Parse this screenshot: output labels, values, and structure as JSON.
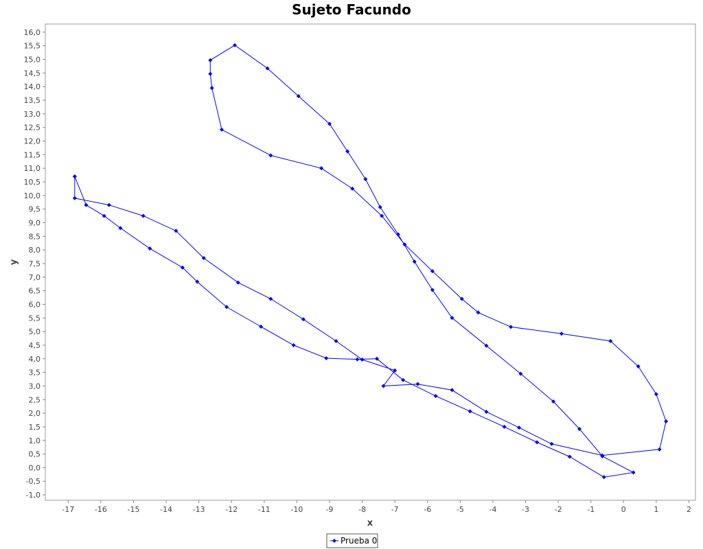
{
  "chart_data": {
    "type": "line",
    "title": "Sujeto Facundo",
    "xlabel": "x",
    "ylabel": "y",
    "xlim": [
      -17.7,
      2.2
    ],
    "ylim": [
      -1.2,
      16.3
    ],
    "x_ticks": [
      "-17",
      "-16",
      "-15",
      "-14",
      "-13",
      "-12",
      "-11",
      "-10",
      "-9",
      "-8",
      "-7",
      "-6",
      "-5",
      "-4",
      "-3",
      "-2",
      "-1",
      "0",
      "1",
      "2"
    ],
    "y_ticks": [
      "-1,0",
      "-0,5",
      "0,0",
      "0,5",
      "1,0",
      "1,5",
      "2,0",
      "2,5",
      "3,0",
      "3,5",
      "4,0",
      "4,5",
      "5,0",
      "5,5",
      "6,0",
      "6,5",
      "7,0",
      "7,5",
      "8,0",
      "8,5",
      "9,0",
      "9,5",
      "10,0",
      "10,5",
      "11,0",
      "11,5",
      "12,0",
      "12,5",
      "13,0",
      "13,5",
      "14,0",
      "14,5",
      "15,0",
      "15,5",
      "16,0"
    ],
    "grid": false,
    "legend_position": "bottom-center",
    "series": [
      {
        "name": "Prueba 0",
        "color": "#0000ff",
        "x": [
          -16.8,
          -16.8,
          -15.75,
          -14.7,
          -13.7,
          -12.85,
          -11.8,
          -10.8,
          -9.8,
          -8.8,
          -8.0,
          -7.0,
          -7.35,
          -6.3,
          -5.25,
          -4.2,
          -3.2,
          -2.2,
          -0.65,
          1.1,
          1.3,
          1.0,
          0.45,
          -0.4,
          -1.9,
          -3.45,
          -4.45,
          -4.95,
          -5.85,
          -6.7,
          -7.4,
          -8.3,
          -9.25,
          -10.8,
          -12.3,
          -12.6,
          -12.65,
          -12.65,
          -11.9,
          -10.9,
          -9.95,
          -9.0,
          -8.45,
          -7.9,
          -7.45,
          -6.9,
          -6.4,
          -5.85,
          -5.25,
          -4.2,
          -3.15,
          -2.15,
          -1.35,
          -0.65,
          0.3,
          -0.6,
          -1.65,
          -2.65,
          -3.65,
          -4.7,
          -5.75,
          -6.75,
          -7.55,
          -8.15,
          -9.1,
          -10.1,
          -11.1,
          -12.15,
          -13.05,
          -13.5,
          -14.5,
          -15.4,
          -15.9,
          -16.45,
          -16.8
        ],
        "y": [
          10.7,
          9.9,
          9.65,
          9.25,
          8.7,
          7.7,
          6.8,
          6.2,
          5.45,
          4.65,
          3.97,
          3.57,
          3.0,
          3.07,
          2.85,
          2.05,
          1.47,
          0.87,
          0.45,
          0.67,
          1.7,
          2.7,
          3.72,
          4.65,
          4.92,
          5.17,
          5.7,
          6.2,
          7.22,
          8.2,
          9.25,
          10.25,
          11.0,
          11.47,
          12.42,
          13.95,
          14.47,
          14.97,
          15.52,
          14.67,
          13.65,
          12.63,
          11.62,
          10.6,
          9.57,
          8.57,
          7.57,
          6.53,
          5.5,
          4.48,
          3.45,
          2.43,
          1.42,
          0.42,
          -0.18,
          -0.35,
          0.4,
          0.93,
          1.5,
          2.07,
          2.63,
          3.22,
          4.0,
          3.98,
          4.02,
          4.5,
          5.18,
          5.9,
          6.83,
          7.35,
          8.05,
          8.8,
          9.25,
          9.65,
          10.7
        ]
      }
    ]
  }
}
